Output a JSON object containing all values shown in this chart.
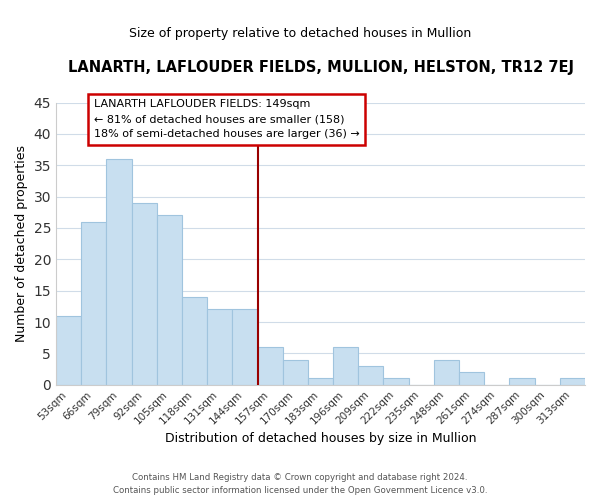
{
  "title": "LANARTH, LAFLOUDER FIELDS, MULLION, HELSTON, TR12 7EJ",
  "subtitle": "Size of property relative to detached houses in Mullion",
  "xlabel": "Distribution of detached houses by size in Mullion",
  "ylabel": "Number of detached properties",
  "footer_line1": "Contains HM Land Registry data © Crown copyright and database right 2024.",
  "footer_line2": "Contains public sector information licensed under the Open Government Licence v3.0.",
  "bar_labels": [
    "53sqm",
    "66sqm",
    "79sqm",
    "92sqm",
    "105sqm",
    "118sqm",
    "131sqm",
    "144sqm",
    "157sqm",
    "170sqm",
    "183sqm",
    "196sqm",
    "209sqm",
    "222sqm",
    "235sqm",
    "248sqm",
    "261sqm",
    "274sqm",
    "287sqm",
    "300sqm",
    "313sqm"
  ],
  "bar_values": [
    11,
    26,
    36,
    29,
    27,
    14,
    12,
    12,
    6,
    4,
    1,
    6,
    3,
    1,
    0,
    4,
    2,
    0,
    1,
    0,
    1
  ],
  "bar_color": "#c8dff0",
  "bar_edge_color": "#a0c4de",
  "highlight_bar_index": 7,
  "highlight_color": "#990000",
  "annotation_text_line1": "LANARTH LAFLOUDER FIELDS: 149sqm",
  "annotation_text_line2": "← 81% of detached houses are smaller (158)",
  "annotation_text_line3": "18% of semi-detached houses are larger (36) →",
  "annotation_box_color": "#ffffff",
  "annotation_box_edge": "#cc0000",
  "ylim": [
    0,
    45
  ],
  "yticks": [
    0,
    5,
    10,
    15,
    20,
    25,
    30,
    35,
    40,
    45
  ],
  "figsize": [
    6.0,
    5.0
  ],
  "dpi": 100
}
